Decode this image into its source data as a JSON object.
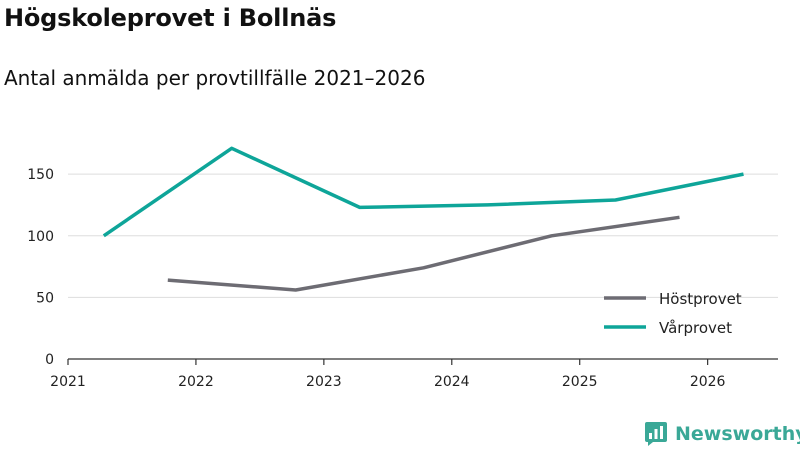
{
  "title": "Högskoleprovet i Bollnäs",
  "subtitle": "Antal anmälda per provtillfälle 2021–2026",
  "brand": {
    "name": "Newsworthy",
    "color": "#3aa897",
    "icon": "newsworthy-logo-icon"
  },
  "chart_data": {
    "type": "line",
    "title": "Högskoleprovet i Bollnäs",
    "subtitle": "Antal anmälda per provtillfälle 2021–2026",
    "xlabel": "",
    "ylabel": "",
    "xlim": [
      2021,
      2026.55
    ],
    "ylim": [
      0,
      185
    ],
    "x_ticks": [
      2021,
      2022,
      2023,
      2024,
      2025,
      2026
    ],
    "x_tick_labels": [
      "2021",
      "2022",
      "2023",
      "2024",
      "2025",
      "2026"
    ],
    "y_ticks": [
      0,
      50,
      100,
      150
    ],
    "y_tick_labels": [
      "0",
      "50",
      "100",
      "150"
    ],
    "grid": "horizontal",
    "legend_position": "bottom-right",
    "series": [
      {
        "name": "Höstprovet",
        "color": "#6d6c73",
        "points": [
          [
            2021.78,
            64
          ],
          [
            2022.78,
            56
          ],
          [
            2023.78,
            74
          ],
          [
            2024.78,
            100
          ],
          [
            2025.78,
            115
          ]
        ]
      },
      {
        "name": "Vårprovet",
        "color": "#0ea599",
        "points": [
          [
            2021.28,
            100
          ],
          [
            2022.28,
            171
          ],
          [
            2023.28,
            123
          ],
          [
            2024.28,
            125
          ],
          [
            2025.28,
            129
          ],
          [
            2026.28,
            150
          ]
        ]
      }
    ]
  }
}
